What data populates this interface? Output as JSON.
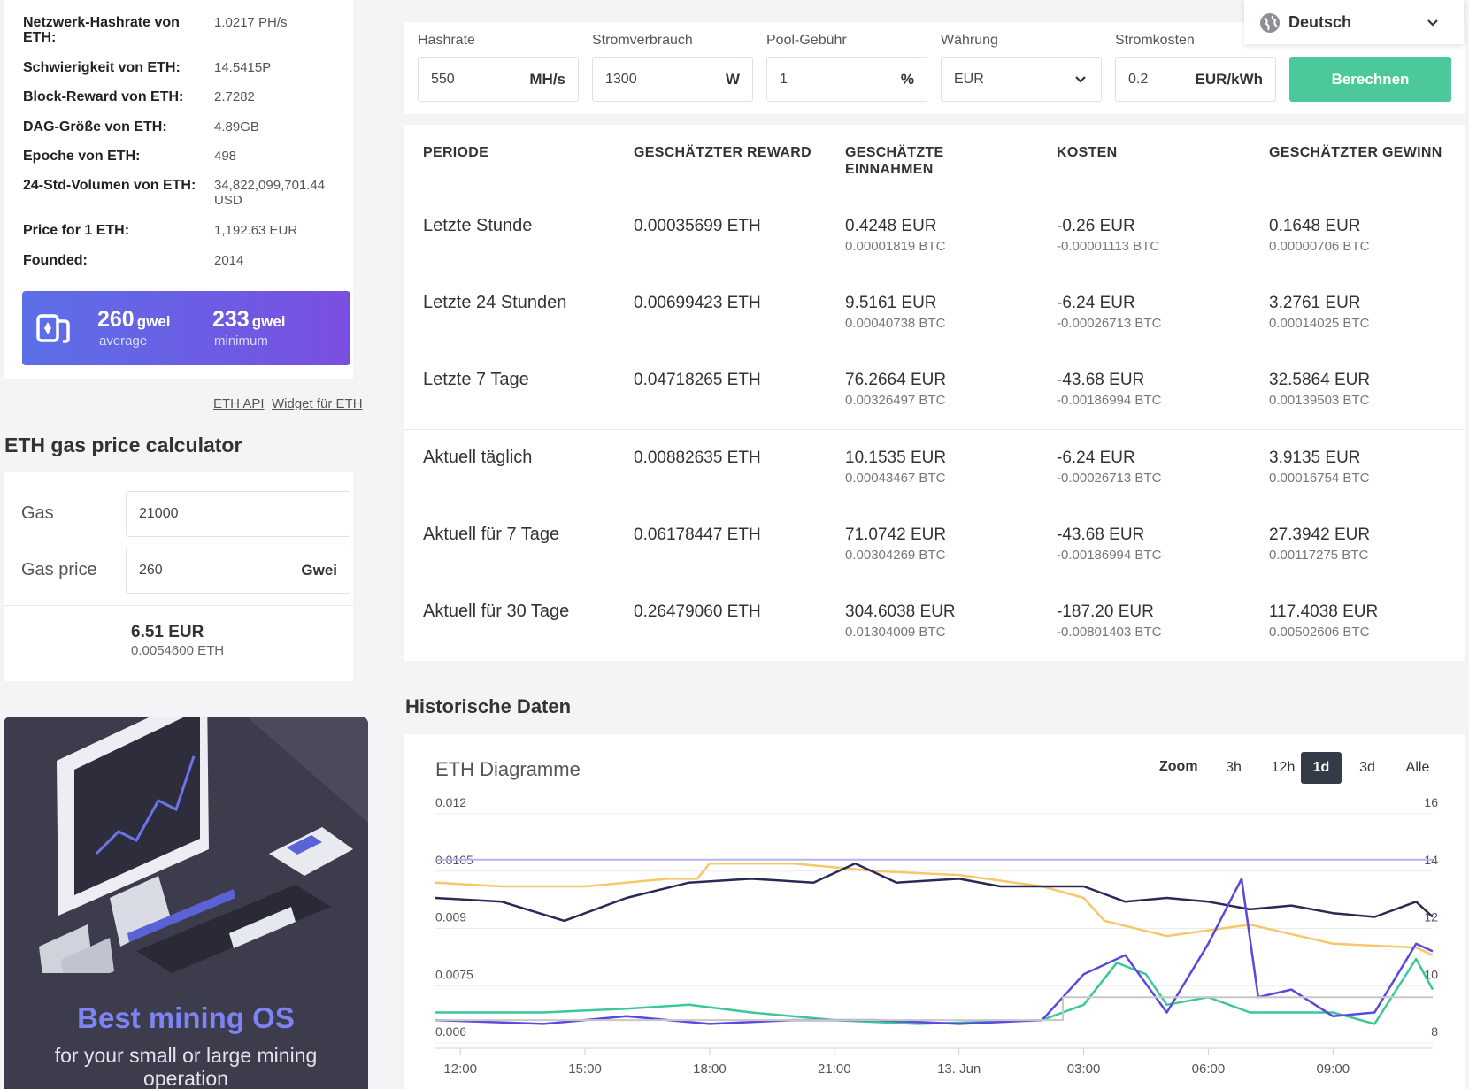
{
  "stats": [
    {
      "label": "Netzwerk-Hashrate von ETH:",
      "value": "1.0217 PH/s"
    },
    {
      "label": "Schwierigkeit von ETH:",
      "value": "14.5415P"
    },
    {
      "label": "Block-Reward von ETH:",
      "value": "2.7282"
    },
    {
      "label": "DAG-Größe von ETH:",
      "value": "4.89GB"
    },
    {
      "label": "Epoche von ETH:",
      "value": "498"
    },
    {
      "label": "24-Std-Volumen von ETH:",
      "value": "34,822,099,701.44 USD"
    },
    {
      "label": "Price for 1 ETH:",
      "value": "1,192.63 EUR"
    },
    {
      "label": "Founded:",
      "value": "2014"
    }
  ],
  "gas_banner": {
    "avg_value": "260",
    "avg_unit": "gwei",
    "avg_label": "average",
    "min_value": "233",
    "min_unit": "gwei",
    "min_label": "minimum"
  },
  "links": {
    "api": "ETH API",
    "widget": "Widget für ETH"
  },
  "gas_calc": {
    "title": "ETH gas price calculator",
    "gas_label": "Gas",
    "gas_value": "21000",
    "price_label": "Gas price",
    "price_value": "260",
    "price_unit": "Gwei",
    "result_main": "6.51 EUR",
    "result_sub": "0.0054600 ETH"
  },
  "promo": {
    "title": "Best mining OS",
    "subtitle_line1": "for your small or large mining",
    "subtitle_line2": "operation"
  },
  "language": {
    "label": "Deutsch"
  },
  "calculator": {
    "hashrate": {
      "label": "Hashrate",
      "value": "550",
      "unit": "MH/s"
    },
    "power": {
      "label": "Stromverbrauch",
      "value": "1300",
      "unit": "W"
    },
    "pool_fee": {
      "label": "Pool-Gebühr",
      "value": "1",
      "unit": "%"
    },
    "currency": {
      "label": "Währung",
      "value": "EUR"
    },
    "power_cost": {
      "label": "Stromkosten",
      "value": "0.2",
      "unit": "EUR/kWh"
    },
    "submit": "Berechnen"
  },
  "table": {
    "headers": [
      "PERIODE",
      "GESCHÄTZTER REWARD",
      "GESCHÄTZTE",
      "EINNAHMEN",
      "KOSTEN",
      "GESCHÄTZTER GEWINN"
    ],
    "rows": [
      {
        "period": "Letzte Stunde",
        "reward": "0.00035699 ETH",
        "income": "0.4248 EUR",
        "income_btc": "0.00001819 BTC",
        "cost": "-0.26 EUR",
        "cost_btc": "-0.00001113 BTC",
        "profit": "0.1648 EUR",
        "profit_btc": "0.00000706 BTC"
      },
      {
        "period": "Letzte 24 Stunden",
        "reward": "0.00699423 ETH",
        "income": "9.5161 EUR",
        "income_btc": "0.00040738 BTC",
        "cost": "-6.24 EUR",
        "cost_btc": "-0.00026713 BTC",
        "profit": "3.2761 EUR",
        "profit_btc": "0.00014025 BTC"
      },
      {
        "period": "Letzte 7 Tage",
        "reward": "0.04718265 ETH",
        "income": "76.2664 EUR",
        "income_btc": "0.00326497 BTC",
        "cost": "-43.68 EUR",
        "cost_btc": "-0.00186994 BTC",
        "profit": "32.5864 EUR",
        "profit_btc": "0.00139503 BTC"
      },
      {
        "period": "Aktuell täglich",
        "reward": "0.00882635 ETH",
        "income": "10.1535 EUR",
        "income_btc": "0.00043467 BTC",
        "cost": "-6.24 EUR",
        "cost_btc": "-0.00026713 BTC",
        "profit": "3.9135 EUR",
        "profit_btc": "0.00016754 BTC"
      },
      {
        "period": "Aktuell für 7 Tage",
        "reward": "0.06178447 ETH",
        "income": "71.0742 EUR",
        "income_btc": "0.00304269 BTC",
        "cost": "-43.68 EUR",
        "cost_btc": "-0.00186994 BTC",
        "profit": "27.3942 EUR",
        "profit_btc": "0.00117275 BTC"
      },
      {
        "period": "Aktuell für 30 Tage",
        "reward": "0.26479060 ETH",
        "income": "304.6038 EUR",
        "income_btc": "0.01304009 BTC",
        "cost": "-187.20 EUR",
        "cost_btc": "-0.00801403 BTC",
        "profit": "117.4038 EUR",
        "profit_btc": "0.00502606 BTC"
      }
    ]
  },
  "history": {
    "title": "Historische Daten",
    "chart_title": "ETH Diagramme",
    "zoom_label": "Zoom",
    "zoom_options": [
      "3h",
      "12h",
      "1d",
      "3d",
      "Alle"
    ],
    "zoom_active": "1d"
  },
  "colors": {
    "accent": "#4cc99a",
    "navy": "#2a2957",
    "blue": "#5a48e0",
    "green": "#3cc79a",
    "yellow": "#f5c86b",
    "lavender": "#b4b4f2",
    "gray": "#c8c8c8"
  },
  "chart_data": {
    "type": "line",
    "x_ticks": [
      "12:00",
      "15:00",
      "18:00",
      "21:00",
      "13. Jun",
      "03:00",
      "06:00",
      "09:00"
    ],
    "y_left_ticks": [
      "0.012",
      "0.0105",
      "0.009",
      "0.0075",
      "0.006"
    ],
    "y_right_ticks": [
      "16",
      "14",
      "12",
      "10",
      "8"
    ],
    "y_left_range": [
      0.006,
      0.012
    ],
    "y_right_range": [
      8,
      16
    ],
    "x_range": [
      -0.6,
      23.4
    ],
    "series": [
      {
        "color": "#f5c86b",
        "axis": "left",
        "values": [
          [
            -0.6,
            0.0102
          ],
          [
            1,
            0.0101
          ],
          [
            3,
            0.0101
          ],
          [
            5,
            0.0103
          ],
          [
            5.7,
            0.0103
          ],
          [
            6,
            0.0107
          ],
          [
            8,
            0.0107
          ],
          [
            10,
            0.0105
          ],
          [
            12,
            0.0104
          ],
          [
            14,
            0.0101
          ],
          [
            15,
            0.0098
          ],
          [
            15.5,
            0.0092
          ],
          [
            17,
            0.0088
          ],
          [
            19,
            0.0091
          ],
          [
            21,
            0.0086
          ],
          [
            23,
            0.0085
          ],
          [
            23.4,
            0.0083
          ]
        ]
      },
      {
        "color": "#2a2957",
        "axis": "left",
        "values": [
          [
            -0.6,
            0.0098
          ],
          [
            1,
            0.0097
          ],
          [
            2.5,
            0.0092
          ],
          [
            4,
            0.0098
          ],
          [
            5.5,
            0.0102
          ],
          [
            7,
            0.0103
          ],
          [
            8.5,
            0.0102
          ],
          [
            9.5,
            0.0107
          ],
          [
            10.5,
            0.0102
          ],
          [
            12,
            0.0103
          ],
          [
            13,
            0.0101
          ],
          [
            15,
            0.0101
          ],
          [
            16,
            0.0097
          ],
          [
            17,
            0.0098
          ],
          [
            18,
            0.0097
          ],
          [
            19,
            0.0095
          ],
          [
            20,
            0.0096
          ],
          [
            21,
            0.0094
          ],
          [
            22,
            0.0093
          ],
          [
            23,
            0.0097
          ],
          [
            23.4,
            0.0093
          ]
        ]
      },
      {
        "color": "#3cc79a",
        "axis": "left",
        "values": [
          [
            -0.6,
            0.0068
          ],
          [
            2,
            0.0068
          ],
          [
            4,
            0.0069
          ],
          [
            5.5,
            0.007
          ],
          [
            7,
            0.0068
          ],
          [
            9,
            0.0066
          ],
          [
            11,
            0.0065
          ],
          [
            14,
            0.0066
          ],
          [
            15,
            0.007
          ],
          [
            15.8,
            0.0081
          ],
          [
            16.5,
            0.0078
          ],
          [
            17,
            0.007
          ],
          [
            18,
            0.0072
          ],
          [
            19,
            0.0068
          ],
          [
            20,
            0.0068
          ],
          [
            21,
            0.0068
          ],
          [
            22,
            0.0065
          ],
          [
            23,
            0.0082
          ],
          [
            23.4,
            0.0074
          ]
        ]
      },
      {
        "color": "#5a48e0",
        "axis": "left",
        "values": [
          [
            -0.6,
            0.0066
          ],
          [
            2,
            0.0065
          ],
          [
            4,
            0.0067
          ],
          [
            6,
            0.0065
          ],
          [
            8,
            0.0066
          ],
          [
            10,
            0.0066
          ],
          [
            12,
            0.0065
          ],
          [
            14,
            0.0066
          ],
          [
            15,
            0.0078
          ],
          [
            16,
            0.0083
          ],
          [
            17,
            0.0068
          ],
          [
            18,
            0.0086
          ],
          [
            18.8,
            0.0103
          ],
          [
            19.2,
            0.0072
          ],
          [
            20,
            0.0074
          ],
          [
            21,
            0.0067
          ],
          [
            22,
            0.0068
          ],
          [
            23,
            0.0086
          ],
          [
            23.4,
            0.0084
          ]
        ]
      },
      {
        "color": "#b4b4f2",
        "axis": "right",
        "values": [
          [
            -0.6,
            14.4
          ],
          [
            23.4,
            14.4
          ]
        ]
      },
      {
        "color": "#c8c8c8",
        "axis": "right",
        "values": [
          [
            -0.6,
            8.8
          ],
          [
            14.5,
            8.8
          ],
          [
            14.5,
            9.6
          ],
          [
            23.4,
            9.6
          ]
        ]
      }
    ]
  }
}
